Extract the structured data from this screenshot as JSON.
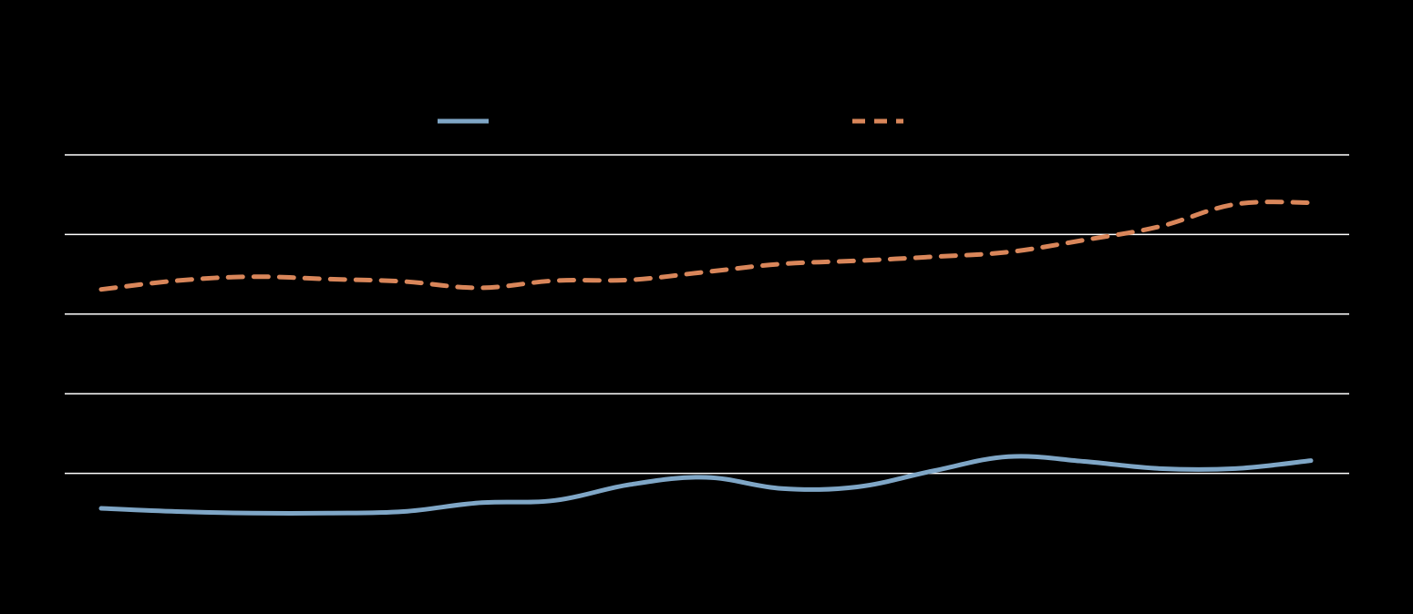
{
  "chart_data": {
    "type": "line",
    "title": "",
    "xlabel": "",
    "ylabel": "",
    "ylim": [
      0,
      5
    ],
    "grid": true,
    "legend_placement": "top-center",
    "x": [
      1,
      2,
      3,
      4,
      5,
      6,
      7,
      8,
      9,
      10,
      11,
      12,
      13,
      14,
      15,
      16,
      17
    ],
    "series": [
      {
        "key": "series_1",
        "style": "solid",
        "color": "#7fa6c6",
        "values": [
          0.56,
          0.52,
          0.5,
          0.5,
          0.52,
          0.63,
          0.66,
          0.86,
          0.95,
          0.81,
          0.83,
          1.03,
          1.21,
          1.15,
          1.06,
          1.06,
          1.16
        ]
      },
      {
        "key": "series_2",
        "style": "dashed",
        "color": "#d9865a",
        "values": [
          3.31,
          3.42,
          3.47,
          3.44,
          3.41,
          3.33,
          3.42,
          3.43,
          3.53,
          3.63,
          3.67,
          3.72,
          3.78,
          3.93,
          4.1,
          4.38,
          4.4
        ]
      }
    ]
  }
}
